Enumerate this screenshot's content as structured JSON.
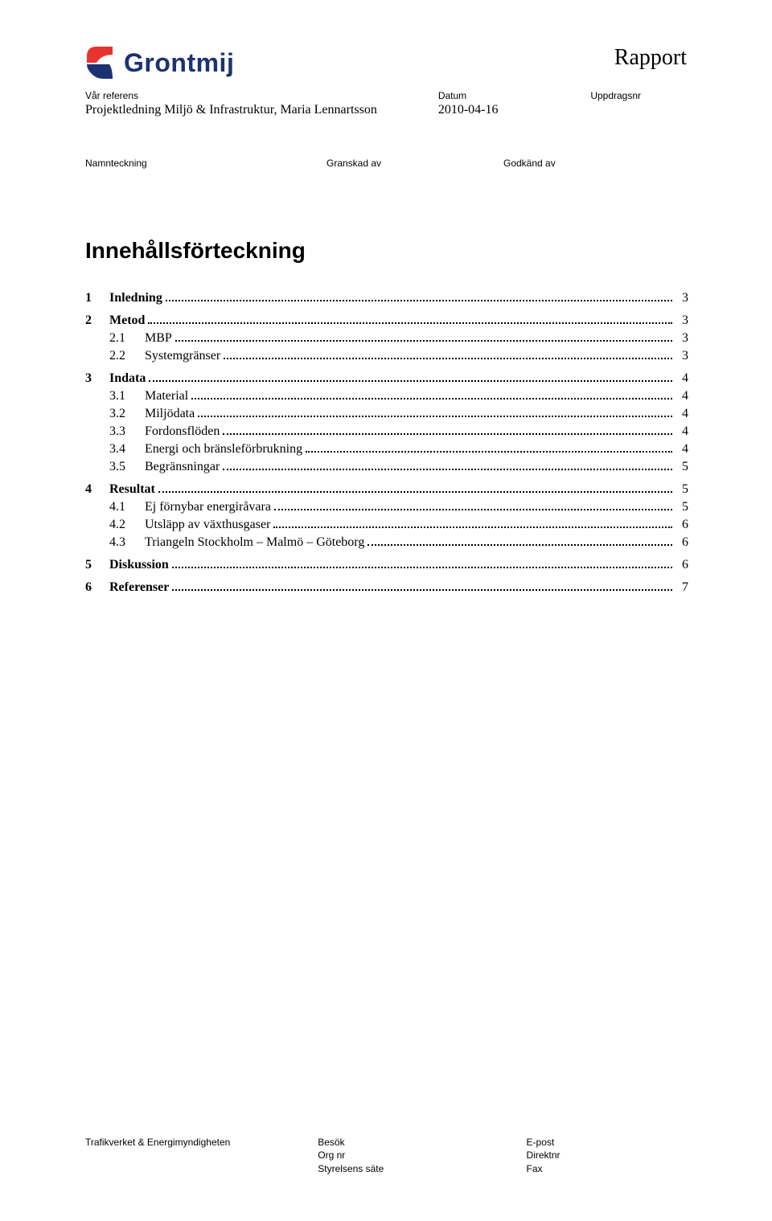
{
  "header": {
    "company_name": "Grontmij",
    "report_label": "Rapport",
    "logo_colors": {
      "top": "#e7322e",
      "bottom": "#1c3270"
    },
    "meta": {
      "ref_label": "Vår referens",
      "ref_value": "Projektledning Miljö & Infrastruktur, Maria Lennartsson",
      "date_label": "Datum",
      "date_value": "2010-04-16",
      "assignment_label": "Uppdragsnr"
    },
    "signoff": {
      "name_label": "Namnteckning",
      "reviewed_label": "Granskad av",
      "approved_label": "Godkänd av"
    }
  },
  "toc_title": "Innehållsförteckning",
  "toc": [
    {
      "level": 1,
      "num": "1",
      "text": "Inledning",
      "page": "3"
    },
    {
      "level": 1,
      "num": "2",
      "text": "Metod",
      "page": "3"
    },
    {
      "level": 2,
      "num": "2.1",
      "text": "MBP",
      "page": "3"
    },
    {
      "level": 2,
      "num": "2.2",
      "text": "Systemgränser",
      "page": "3"
    },
    {
      "level": 1,
      "num": "3",
      "text": "Indata",
      "page": "4"
    },
    {
      "level": 2,
      "num": "3.1",
      "text": "Material",
      "page": "4"
    },
    {
      "level": 2,
      "num": "3.2",
      "text": "Miljödata",
      "page": "4"
    },
    {
      "level": 2,
      "num": "3.3",
      "text": "Fordonsflöden",
      "page": "4"
    },
    {
      "level": 2,
      "num": "3.4",
      "text": "Energi och bränsleförbrukning",
      "page": "4"
    },
    {
      "level": 2,
      "num": "3.5",
      "text": "Begränsningar",
      "page": "5"
    },
    {
      "level": 1,
      "num": "4",
      "text": "Resultat",
      "page": "5"
    },
    {
      "level": 2,
      "num": "4.1",
      "text": "Ej förnybar energiråvara",
      "page": "5"
    },
    {
      "level": 2,
      "num": "4.2",
      "text": "Utsläpp av växthusgaser",
      "page": "6"
    },
    {
      "level": 2,
      "num": "4.3",
      "text": "Triangeln Stockholm – Malmö – Göteborg",
      "page": "6"
    },
    {
      "level": 1,
      "num": "5",
      "text": "Diskussion",
      "page": "6"
    },
    {
      "level": 1,
      "num": "6",
      "text": "Referenser",
      "page": "7"
    }
  ],
  "footer": {
    "client": "Trafikverket & Energimyndigheten",
    "col2": [
      "Besök",
      "Org nr",
      "Styrelsens säte"
    ],
    "col3": [
      "E-post",
      "Direktnr",
      "Fax"
    ]
  }
}
